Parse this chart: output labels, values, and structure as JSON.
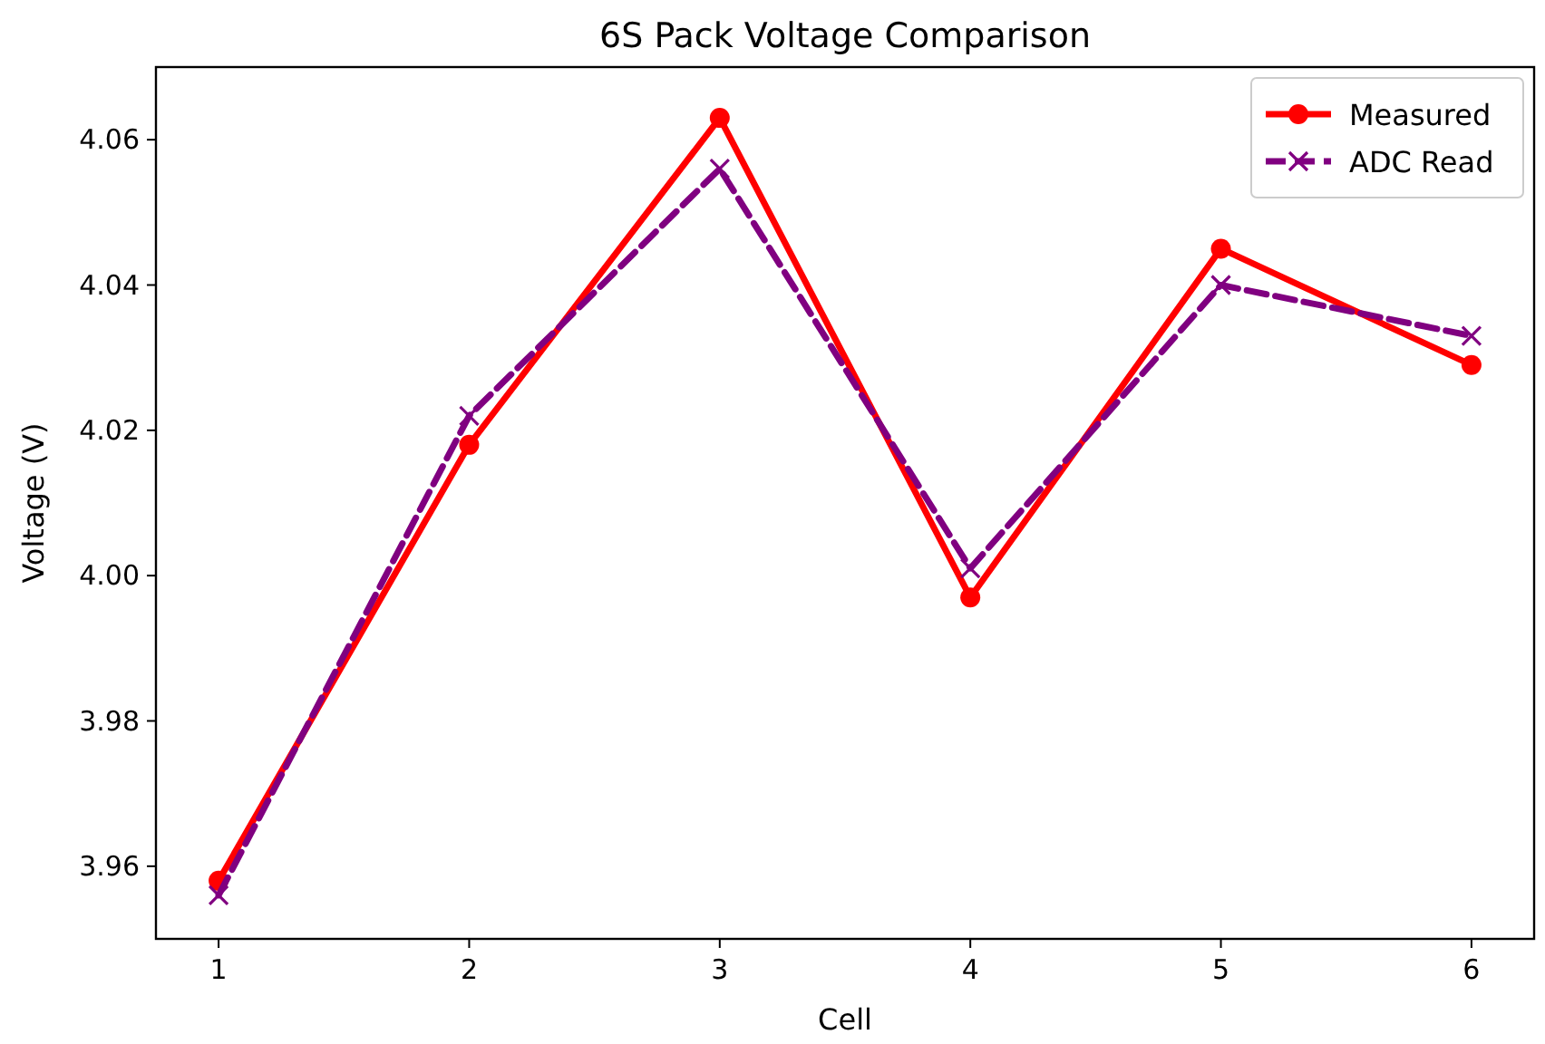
{
  "chart_data": {
    "type": "line",
    "title": "6S Pack Voltage Comparison",
    "xlabel": "Cell",
    "ylabel": "Voltage (V)",
    "x": [
      1,
      2,
      3,
      4,
      5,
      6
    ],
    "xlim": [
      0.75,
      6.25
    ],
    "xticks": [
      1,
      2,
      3,
      4,
      5,
      6
    ],
    "ylim": [
      3.95,
      4.07
    ],
    "yticks": [
      {
        "value": 3.96,
        "label": "3.96"
      },
      {
        "value": 3.98,
        "label": "3.98"
      },
      {
        "value": 4.0,
        "label": "4.00"
      },
      {
        "value": 4.02,
        "label": "4.02"
      },
      {
        "value": 4.04,
        "label": "4.04"
      },
      {
        "value": 4.06,
        "label": "4.06"
      }
    ],
    "legend": "top right",
    "grid": false,
    "series": [
      {
        "name": "Measured",
        "color": "#ff0000",
        "marker": "circle",
        "line_style": "solid",
        "values": [
          3.958,
          4.018,
          4.063,
          3.997,
          4.045,
          4.029
        ]
      },
      {
        "name": "ADC Read",
        "color": "#800080",
        "marker": "cross",
        "line_style": "dashed",
        "values": [
          3.956,
          4.022,
          4.056,
          4.001,
          4.04,
          4.033
        ]
      }
    ]
  }
}
